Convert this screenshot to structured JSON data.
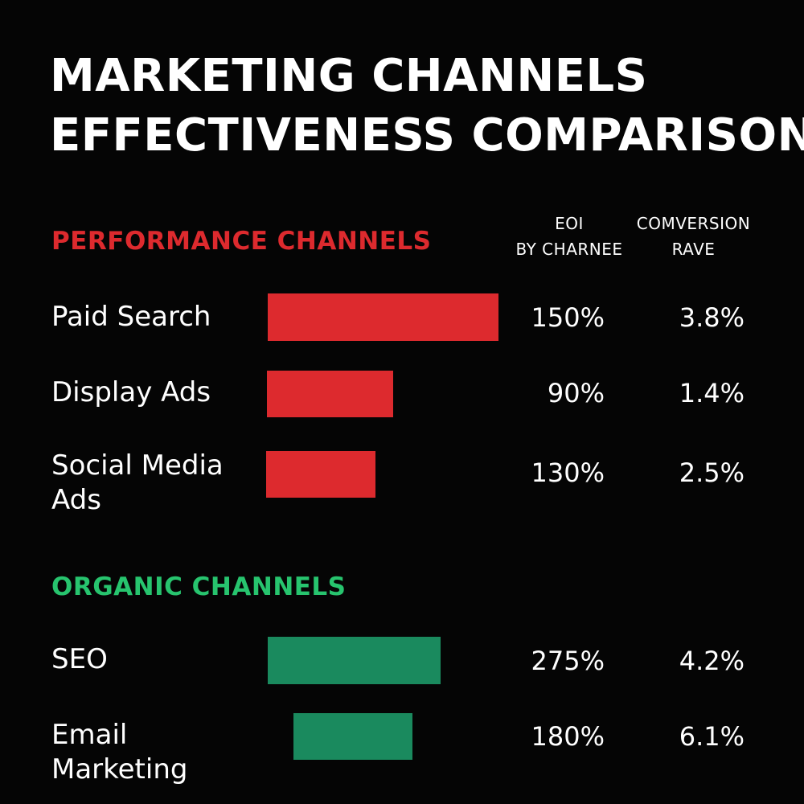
{
  "chart_data": {
    "type": "bar",
    "title": [
      "MARKETING CHANNELS",
      "EFFECTIVENESS COMPARISON"
    ],
    "column_headers": {
      "roi": [
        "EOI",
        "BY CHARNEE"
      ],
      "conversion": [
        "COMVERSION",
        "RAVE"
      ]
    },
    "colors": {
      "performance": "#dd2a2e",
      "organic": "#1a8a5e"
    },
    "groups": [
      {
        "name": "PERFORMANCE CHANNELS",
        "color": "#dd2a2e",
        "rows": [
          {
            "label": "Paid Search",
            "roi_label": "150%",
            "conversion_label": "3.8%"
          },
          {
            "label": "Display Ads",
            "roi_label": "90%",
            "conversion_label": "1.4%"
          },
          {
            "label": "Social Media Ads",
            "roi_label": "130%",
            "conversion_label": "2.5%"
          }
        ]
      },
      {
        "name": "ORGANIC CHANNELS",
        "color": "#1a8a5e",
        "rows": [
          {
            "label": "SEO",
            "roi_label": "275%",
            "conversion_label": "4.2%"
          },
          {
            "label": "Email Marketing",
            "roi_label": "180%",
            "conversion_label": "6.1%"
          }
        ]
      }
    ]
  }
}
